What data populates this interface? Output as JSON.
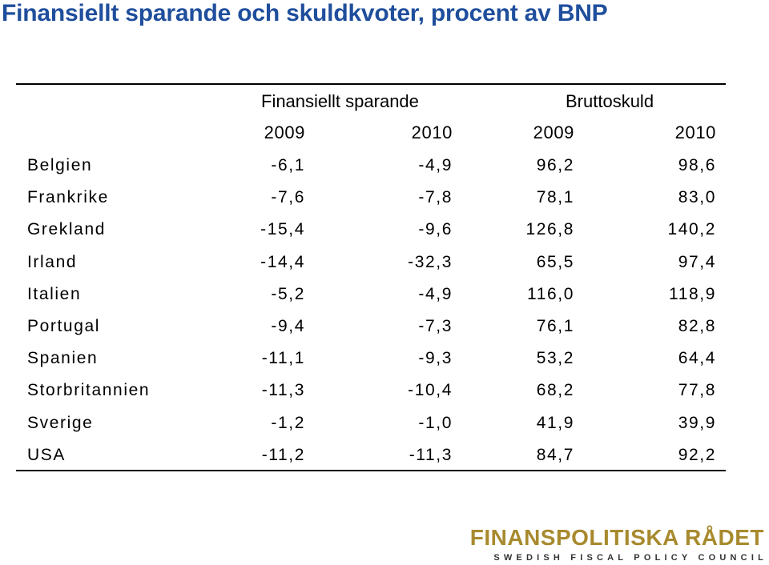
{
  "title": "Finansiellt sparande och skuldkvoter, procent av BNP",
  "table": {
    "groups": [
      "Finansiellt sparande",
      "Bruttoskuld"
    ],
    "years": [
      "2009",
      "2010",
      "2009",
      "2010"
    ],
    "rows": [
      {
        "country": "Belgien",
        "values": [
          "-6,1",
          "-4,9",
          "96,2",
          "98,6"
        ]
      },
      {
        "country": "Frankrike",
        "values": [
          "-7,6",
          "-7,8",
          "78,1",
          "83,0"
        ]
      },
      {
        "country": "Grekland",
        "values": [
          "-15,4",
          "-9,6",
          "126,8",
          "140,2"
        ]
      },
      {
        "country": "Irland",
        "values": [
          "-14,4",
          "-32,3",
          "65,5",
          "97,4"
        ]
      },
      {
        "country": "Italien",
        "values": [
          "-5,2",
          "-4,9",
          "116,0",
          "118,9"
        ]
      },
      {
        "country": "Portugal",
        "values": [
          "-9,4",
          "-7,3",
          "76,1",
          "82,8"
        ]
      },
      {
        "country": "Spanien",
        "values": [
          "-11,1",
          "-9,3",
          "53,2",
          "64,4"
        ]
      },
      {
        "country": "Storbritannien",
        "values": [
          "-11,3",
          "-10,4",
          "68,2",
          "77,8"
        ]
      },
      {
        "country": "Sverige",
        "values": [
          "-1,2",
          "-1,0",
          "41,9",
          "39,9"
        ]
      },
      {
        "country": "USA",
        "values": [
          "-11,2",
          "-11,3",
          "84,7",
          "92,2"
        ]
      }
    ]
  },
  "logo": {
    "name": "FINANSPOLITISKA RÅDET",
    "subtitle": "SWEDISH FISCAL POLICY COUNCIL"
  }
}
